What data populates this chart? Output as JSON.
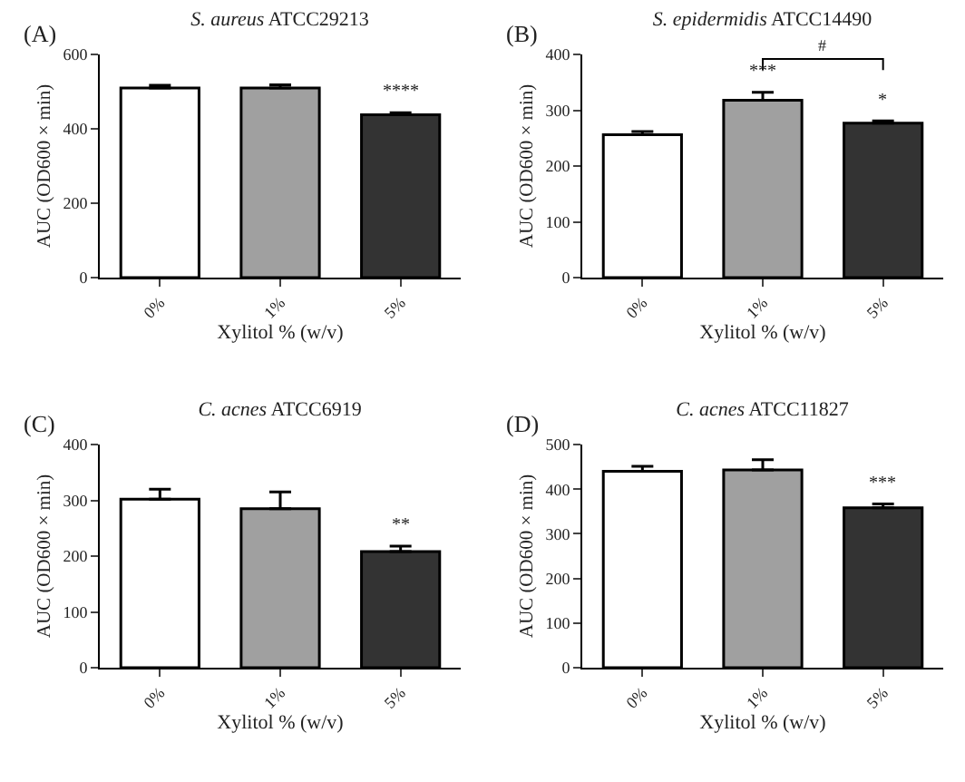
{
  "chart_data": [
    {
      "type": "bar",
      "title": "S. aureus ATCC29213",
      "xlabel": "Xylitol % (w/v)",
      "ylabel": "AUC (OD600 × min)",
      "categories": [
        "0%",
        "1%",
        "5%"
      ],
      "values": [
        510,
        510,
        438
      ],
      "colors": [
        "#ffffff",
        "#a0a0a0",
        "#333333"
      ],
      "errors": [
        [
          510,
          517
        ],
        [
          510,
          518
        ],
        [
          438,
          443
        ]
      ],
      "ylim": [
        0,
        600
      ],
      "yticks": [
        0,
        200,
        400,
        600
      ],
      "grid": false,
      "annotations": [
        "(A)",
        "****"
      ]
    },
    {
      "type": "bar",
      "title": "S. epidermidis ATCC14490",
      "xlabel": "Xylitol % (w/v)",
      "ylabel": "AUC (OD600 × min)",
      "categories": [
        "0%",
        "1%",
        "5%"
      ],
      "values": [
        256,
        318,
        277
      ],
      "colors": [
        "#ffffff",
        "#a0a0a0",
        "#333333"
      ],
      "errors": [
        [
          256,
          262
        ],
        [
          318,
          332
        ],
        [
          277,
          281
        ]
      ],
      "ylim": [
        0,
        400
      ],
      "yticks": [
        0,
        100,
        200,
        300,
        400
      ],
      "grid": false,
      "annotations": [
        "(B)",
        "***",
        "*",
        "#"
      ]
    },
    {
      "type": "bar",
      "title": "C. acnes ATCC6919",
      "xlabel": "Xylitol % (w/v)",
      "ylabel": "AUC (OD600 × min)",
      "categories": [
        "0%",
        "1%",
        "5%"
      ],
      "values": [
        302,
        285,
        208
      ],
      "colors": [
        "#ffffff",
        "#a0a0a0",
        "#333333"
      ],
      "errors": [
        [
          302,
          320
        ],
        [
          285,
          315
        ],
        [
          208,
          218
        ]
      ],
      "ylim": [
        0,
        400
      ],
      "yticks": [
        0,
        100,
        200,
        300,
        400
      ],
      "grid": false,
      "annotations": [
        "(C)",
        "**"
      ]
    },
    {
      "type": "bar",
      "title": "C. acnes ATCC11827",
      "xlabel": "Xylitol % (w/v)",
      "ylabel": "AUC (OD600 × min)",
      "categories": [
        "0%",
        "1%",
        "5%"
      ],
      "values": [
        440,
        443,
        358
      ],
      "colors": [
        "#ffffff",
        "#a0a0a0",
        "#333333"
      ],
      "errors": [
        [
          440,
          451
        ],
        [
          443,
          466
        ],
        [
          358,
          367
        ]
      ],
      "ylim": [
        0,
        500
      ],
      "yticks": [
        0,
        100,
        200,
        300,
        400,
        500
      ],
      "grid": false,
      "annotations": [
        "(D)",
        "***"
      ]
    }
  ]
}
